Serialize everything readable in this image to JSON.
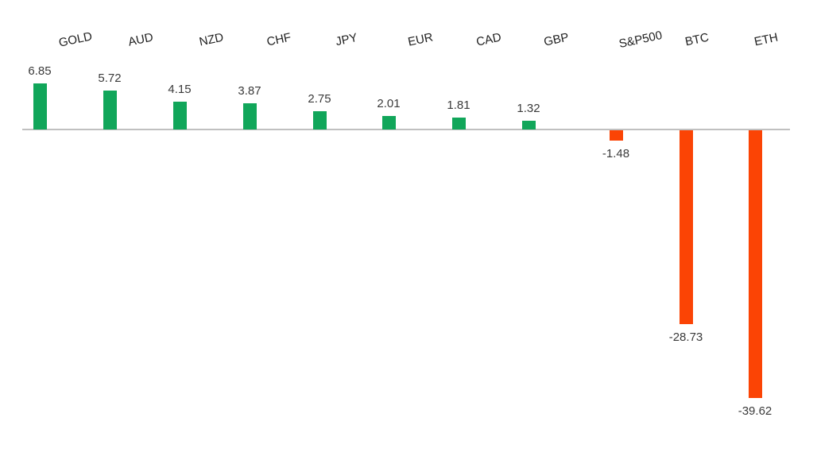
{
  "chart_data": {
    "type": "bar",
    "categories": [
      "GOLD",
      "AUD",
      "NZD",
      "CHF",
      "JPY",
      "EUR",
      "CAD",
      "GBP",
      "S&P500",
      "BTC",
      "ETH"
    ],
    "values": [
      6.85,
      5.72,
      4.15,
      3.87,
      2.75,
      2.01,
      1.81,
      1.32,
      -1.48,
      -28.73,
      -39.62
    ],
    "value_labels": [
      "6.85",
      "5.72",
      "4.15",
      "3.87",
      "2.75",
      "2.01",
      "1.81",
      "1.32",
      "-1.48",
      "-28.73",
      "-39.62"
    ],
    "title": "",
    "xlabel": "",
    "ylabel": "",
    "ylim": [
      -45,
      10
    ],
    "grid": false,
    "legend": false,
    "label_position": "top",
    "colors": {
      "positive_bar": "#11A65A",
      "negative_bar": "#FB4405",
      "axis_line": "#C0C0C0",
      "category_text": "#1F1F1F",
      "value_text": "#3A3A3A",
      "background": "#FFFFFF"
    }
  }
}
